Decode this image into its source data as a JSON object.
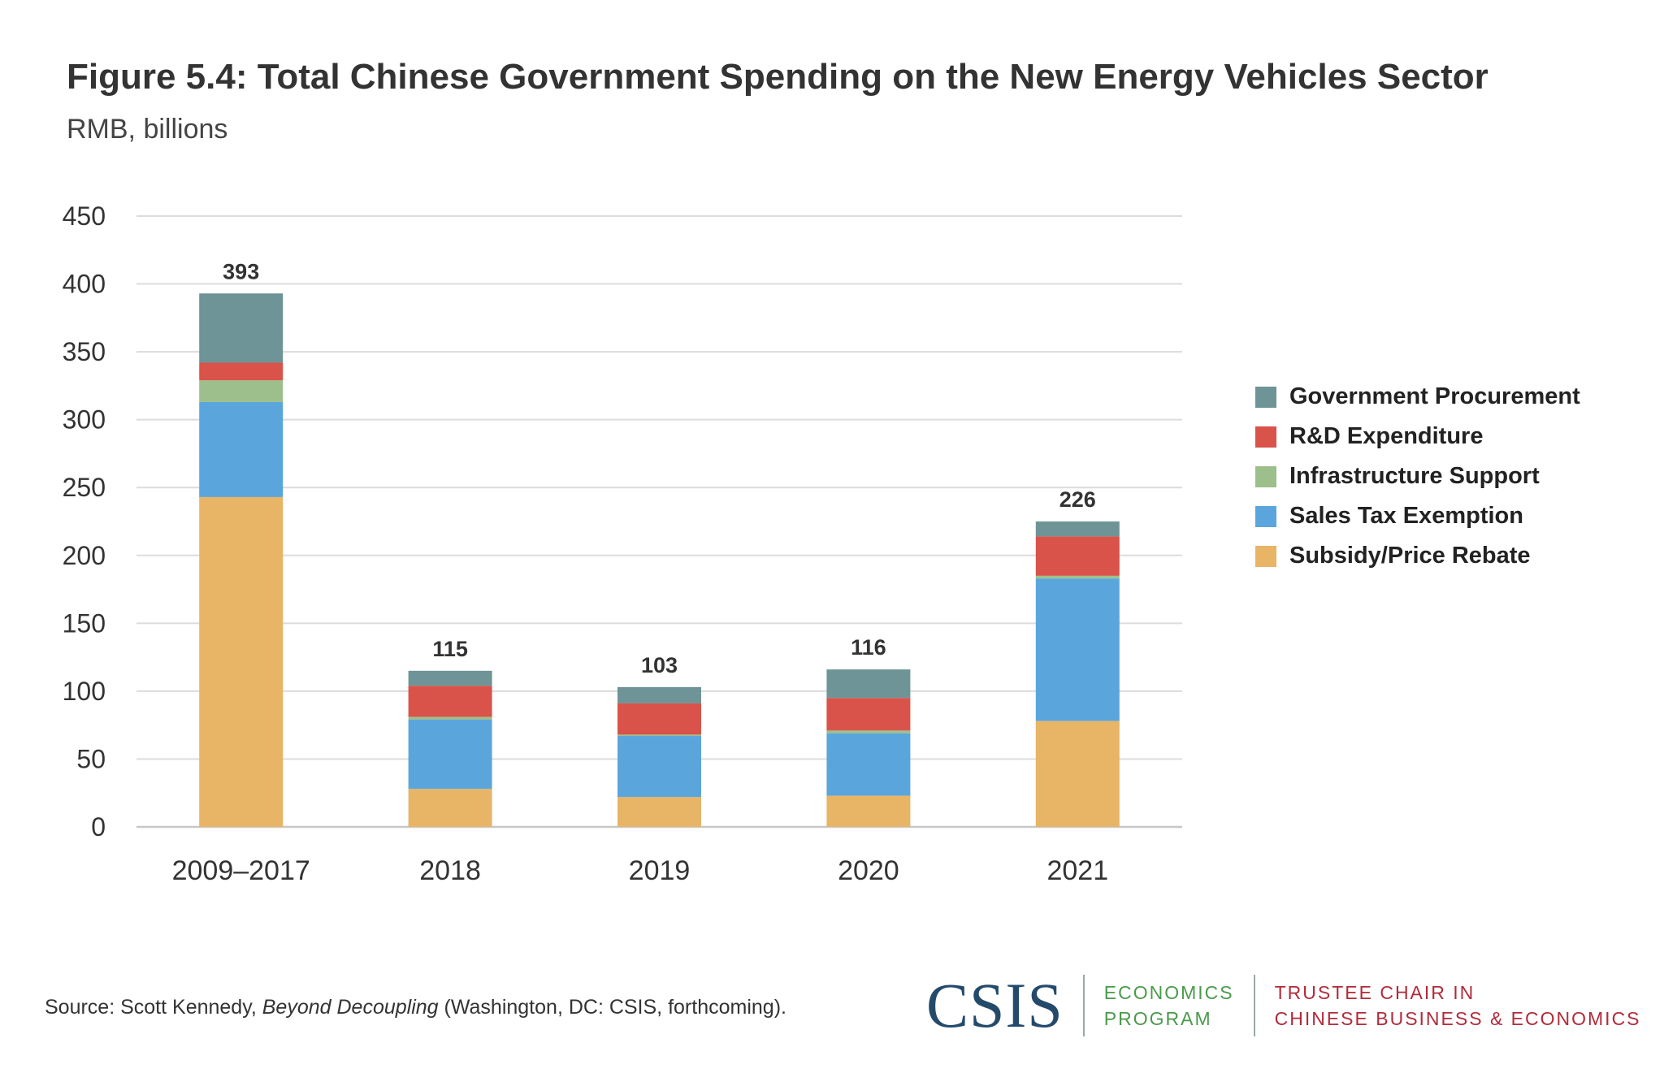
{
  "title": "Figure 5.4: Total Chinese Government Spending on the New Energy Vehicles Sector",
  "subtitle": "RMB, billions",
  "chart_data": {
    "type": "bar",
    "stacked": true,
    "categories": [
      "2009–2017",
      "2018",
      "2019",
      "2020",
      "2021"
    ],
    "series": [
      {
        "name": "Subsidy/Price Rebate",
        "color": "#e8b466",
        "values": [
          243,
          28,
          22,
          23,
          78
        ]
      },
      {
        "name": "Sales Tax Exemption",
        "color": "#5aa6dc",
        "values": [
          70,
          51,
          45,
          46,
          105
        ]
      },
      {
        "name": "Infrastructure Support",
        "color": "#9dbf8c",
        "values": [
          16,
          2,
          1,
          2,
          2
        ]
      },
      {
        "name": "R&D Expenditure",
        "color": "#d9534a",
        "values": [
          13,
          23,
          23,
          24,
          29
        ]
      },
      {
        "name": "Government Procurement",
        "color": "#6e9497",
        "values": [
          51,
          11,
          12,
          21,
          11
        ]
      }
    ],
    "totals": [
      393,
      115,
      103,
      116,
      226
    ],
    "total_labels": [
      "393",
      "115",
      "103",
      "116",
      "226"
    ],
    "ylim": [
      0,
      450
    ],
    "yticks": [
      0,
      50,
      100,
      150,
      200,
      250,
      300,
      350,
      400,
      450
    ],
    "grid": true,
    "legend_position": "right",
    "legend_order": [
      "Government Procurement",
      "R&D Expenditure",
      "Infrastructure Support",
      "Sales Tax Exemption",
      "Subsidy/Price Rebate"
    ]
  },
  "source": {
    "prefix": "Source:  Scott Kennedy, ",
    "book": "Beyond Decoupling",
    "suffix": " (Washington, DC: CSIS, forthcoming)."
  },
  "logo": {
    "csis": "CSIS",
    "program_line1": "ECONOMICS",
    "program_line2": "PROGRAM",
    "chair_line1": "TRUSTEE CHAIR IN",
    "chair_line2": "CHINESE BUSINESS & ECONOMICS",
    "program_color": "#4b9a4b",
    "chair_color": "#b22b3a",
    "csis_color": "#244a6b"
  }
}
